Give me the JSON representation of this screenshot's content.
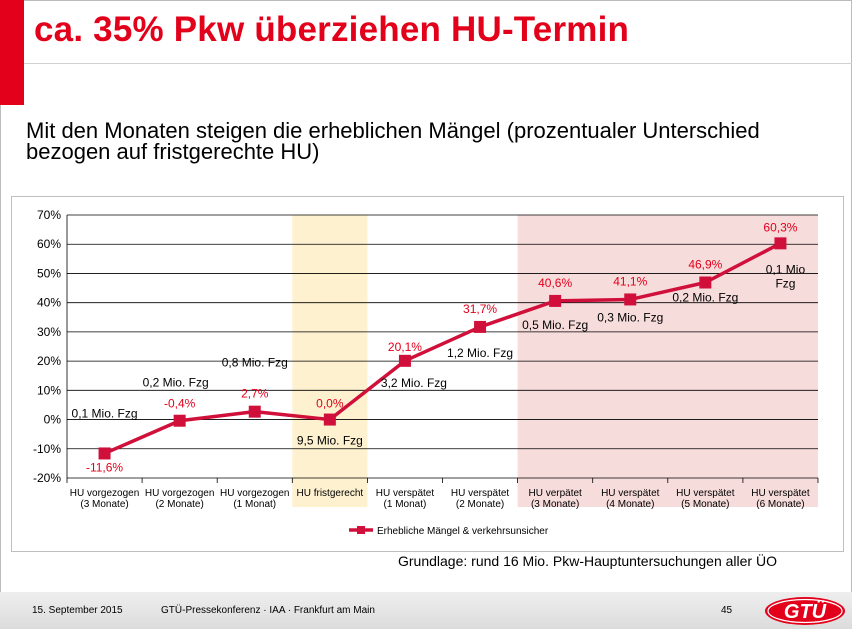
{
  "slide": {
    "title": "ca. 35% Pkw überziehen HU-Termin",
    "subtitle": "Mit den Monaten steigen die erheblichen Mängel (prozentualer Unterschied bezogen auf fristgerechte HU)",
    "footnote": "Grundlage: rund 16 Mio. Pkw-Hauptuntersuchungen aller ÜO",
    "footer": {
      "date": "15. September 2015",
      "event": "GTÜ-Pressekonferenz · IAA · Frankfurt am Main",
      "page": "45",
      "logo_text": "GTÜ"
    }
  },
  "colors": {
    "accent": "#e2001a",
    "line": "#d0103a",
    "highlight_yellow": "#fdf1cf",
    "highlight_pink": "#f7dcdc"
  },
  "chart_data": {
    "type": "line",
    "categories": [
      [
        "HU vorgezogen",
        "(3 Monate)"
      ],
      [
        "HU vorgezogen",
        "(2 Monate)"
      ],
      [
        "HU vorgezogen",
        "(1 Monat)"
      ],
      [
        "HU fristgerecht"
      ],
      [
        "HU verspätet",
        "(1 Monat)"
      ],
      [
        "HU verspätet",
        "(2 Monate)"
      ],
      [
        "HU verpätet",
        "(3 Monate)"
      ],
      [
        "HU verspätet",
        "(4 Monate)"
      ],
      [
        "HU verspätet",
        "(5 Monate)"
      ],
      [
        "HU verspätet",
        "(6 Monate)"
      ]
    ],
    "series": [
      {
        "name": "Erhebliche Mängel & verkehrsunsicher",
        "values": [
          -11.6,
          -0.4,
          2.7,
          0.0,
          20.1,
          31.7,
          40.6,
          41.1,
          46.9,
          60.3
        ],
        "value_labels": [
          "-11,6%",
          "-0,4%",
          "2,7%",
          "0,0%",
          "20,1%",
          "31,7%",
          "40,6%",
          "41,1%",
          "46,9%",
          "60,3%"
        ],
        "vehicle_labels": [
          [
            "0,1 Mio. Fzg"
          ],
          [
            "0,2 Mio. Fzg"
          ],
          [
            "0,8 Mio. Fzg"
          ],
          [
            "9,5 Mio. Fzg"
          ],
          [
            "3,2 Mio. Fzg"
          ],
          [
            "1,2 Mio. Fzg"
          ],
          [
            "0,5 Mio. Fzg"
          ],
          [
            "0,3 Mio. Fzg"
          ],
          [
            "0,2 Mio. Fzg"
          ],
          [
            "0,1 Mio",
            "Fzg"
          ]
        ]
      }
    ],
    "y_ticks": [
      "70%",
      "60%",
      "50%",
      "40%",
      "30%",
      "20%",
      "10%",
      "0%",
      "-10%",
      "-20%"
    ],
    "ylim": [
      -20,
      70
    ],
    "grid": true,
    "legend_position": "bottom",
    "highlight_regions": [
      {
        "from_category": 3,
        "to_category": 3,
        "color": "yellow"
      },
      {
        "from_category": 6,
        "to_category": 9,
        "color": "pink"
      }
    ]
  }
}
